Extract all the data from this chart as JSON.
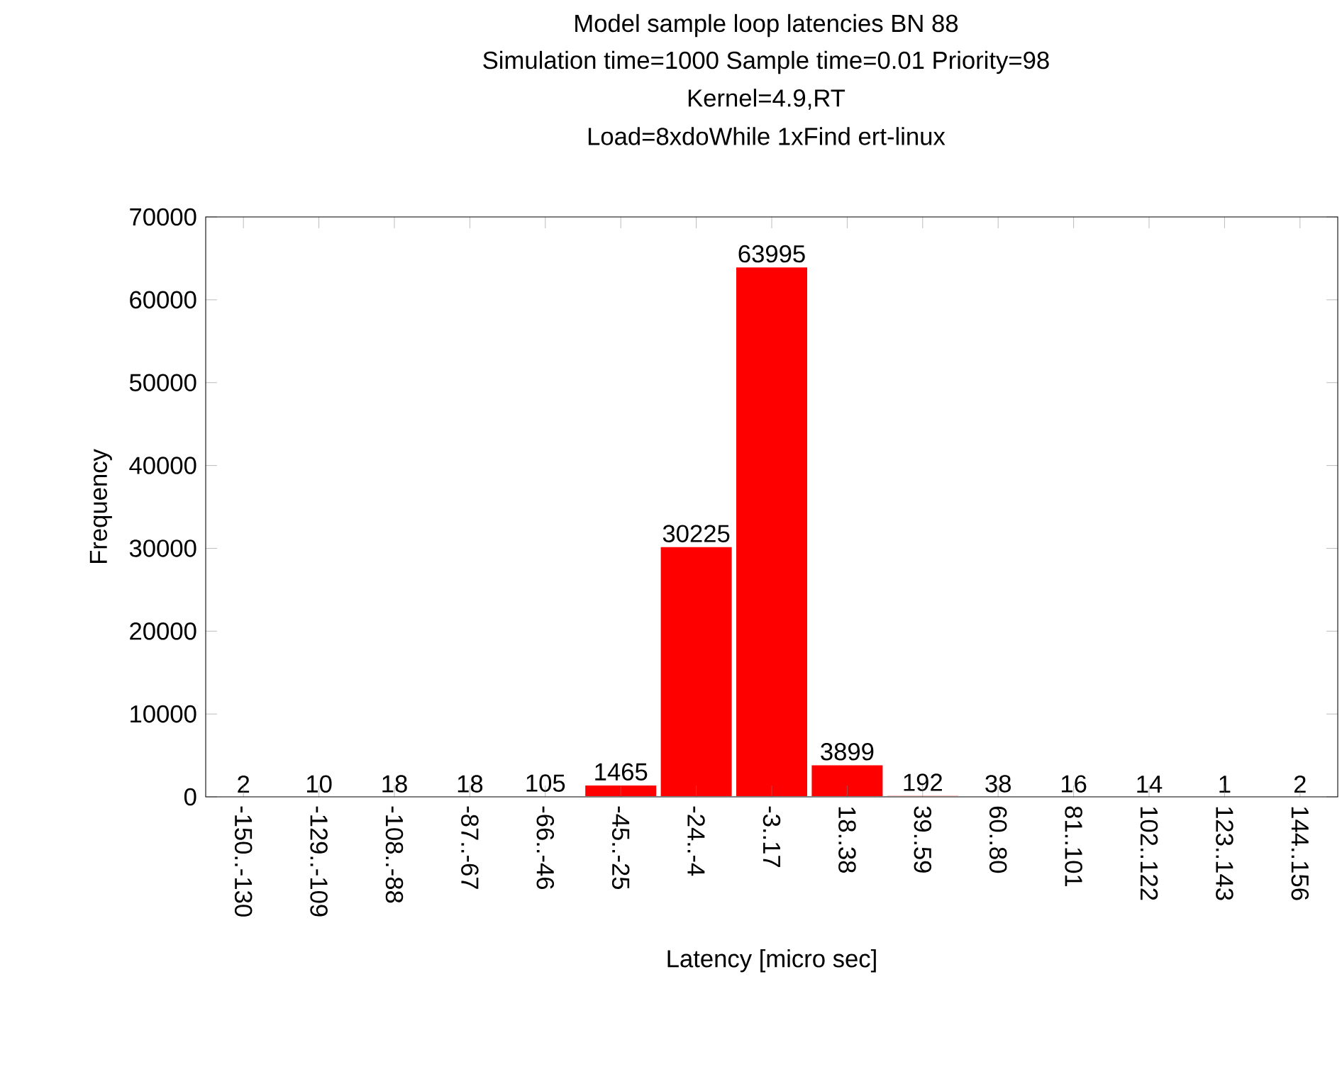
{
  "chart_data": {
    "type": "bar",
    "title": "Model sample loop latencies BN 88",
    "subtitle": "Simulation time=1000 Sample time=0.01 Priority=98",
    "annotations": [
      "Kernel=4.9,RT",
      "Load=8xdoWhile 1xFind ert-linux"
    ],
    "xlabel": "Latency [micro sec]",
    "ylabel": "Frequency",
    "categories": [
      "-150..-130",
      "-129..-109",
      "-108..-88",
      "-87..-67",
      "-66..-46",
      "-45..-25",
      "-24..-4",
      "-3..17",
      "18..38",
      "39..59",
      "60..80",
      "81..101",
      "102..122",
      "123..143",
      "144..156"
    ],
    "values": [
      2,
      10,
      18,
      18,
      105,
      1465,
      30225,
      63995,
      3899,
      192,
      38,
      16,
      14,
      1,
      2
    ],
    "color": "#ff0000",
    "data_labels": true,
    "ylim": [
      0,
      70000
    ],
    "yticks": [
      0,
      10000,
      20000,
      30000,
      40000,
      50000,
      60000,
      70000
    ]
  }
}
